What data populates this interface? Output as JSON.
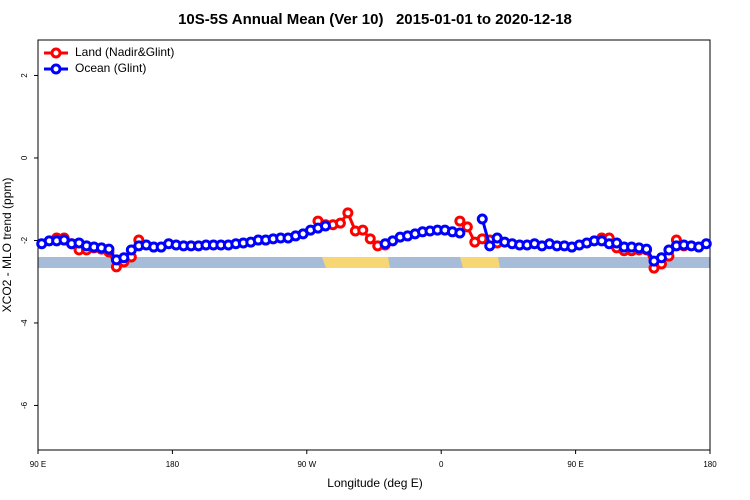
{
  "chart_data": {
    "type": "line",
    "title": "10S-5S Annual Mean (Ver 10)   2015-01-01 to 2020-12-18",
    "x_label": "Longitude (deg E)",
    "y_label": "XCO2 - MLO trend (ppm)",
    "xlim": [
      90,
      540
    ],
    "ylim": [
      -7.08,
      2.86
    ],
    "xticks": [
      {
        "value": 90,
        "label": "90 E"
      },
      180,
      {
        "value": 270,
        "label": "90 W"
      },
      {
        "value": 360,
        "label": "0"
      },
      {
        "value": 450,
        "label": "90 E"
      },
      {
        "value": 540,
        "label": "180"
      }
    ],
    "yticks": [
      -6,
      -4,
      -2,
      0,
      2
    ],
    "legend": "top-left",
    "x": [
      92.5,
      97.5,
      102.5,
      107.5,
      112.5,
      117.5,
      122.5,
      127.5,
      132.5,
      137.5,
      142.5,
      147.5,
      152.5,
      157.5,
      162.5,
      167.5,
      172.5,
      177.5,
      182.5,
      187.5,
      192.5,
      197.5,
      202.5,
      207.5,
      212.5,
      217.5,
      222.5,
      227.5,
      232.5,
      237.5,
      242.5,
      247.5,
      252.5,
      257.5,
      262.5,
      267.5,
      272.5,
      277.5,
      282.5,
      287.5,
      292.5,
      297.5,
      302.5,
      307.5,
      312.5,
      317.5,
      322.5,
      327.5,
      332.5,
      337.5,
      342.5,
      347.5,
      352.5,
      357.5,
      362.5,
      367.5,
      372.5,
      377.5,
      382.5,
      387.5,
      392.5,
      397.5,
      402.5,
      407.5,
      412.5,
      417.5,
      422.5,
      427.5,
      432.5,
      437.5,
      442.5,
      447.5,
      452.5,
      457.5,
      462.5,
      467.5,
      472.5,
      477.5,
      482.5,
      487.5,
      492.5,
      497.5,
      502.5,
      507.5,
      512.5,
      517.5,
      522.5,
      527.5,
      532.5,
      537.5
    ],
    "series": [
      {
        "name": "Land (Nadir&Glint)",
        "color": "#ff0000",
        "values": [
          null,
          null,
          -1.94,
          -1.94,
          -2.08,
          -2.23,
          -2.23,
          -2.18,
          -2.21,
          -2.28,
          -2.64,
          -2.52,
          -2.4,
          -1.99,
          null,
          null,
          null,
          null,
          null,
          null,
          null,
          null,
          null,
          null,
          null,
          null,
          null,
          null,
          null,
          null,
          null,
          null,
          null,
          null,
          null,
          null,
          null,
          -1.53,
          -1.62,
          -1.62,
          -1.58,
          -1.33,
          -1.77,
          -1.75,
          -1.96,
          -2.13,
          -2.11,
          null,
          null,
          null,
          null,
          null,
          null,
          null,
          null,
          null,
          -1.53,
          -1.67,
          -2.04,
          -1.96,
          -1.99,
          -2.06,
          null,
          null,
          null,
          null,
          null,
          null,
          null,
          null,
          null,
          null,
          null,
          null,
          null,
          -1.94,
          -1.94,
          -2.18,
          -2.25,
          -2.25,
          -2.23,
          -2.23,
          -2.67,
          -2.57,
          -2.38,
          -1.99,
          -2.13,
          null,
          null,
          null
        ]
      },
      {
        "name": "Ocean (Glint)",
        "color": "#0000ff",
        "values": [
          -2.08,
          -2.01,
          -2.01,
          -1.99,
          -2.08,
          -2.06,
          -2.13,
          -2.16,
          -2.18,
          -2.21,
          -2.47,
          -2.42,
          -2.23,
          -2.13,
          -2.11,
          -2.16,
          -2.16,
          -2.08,
          -2.11,
          -2.13,
          -2.13,
          -2.13,
          -2.11,
          -2.11,
          -2.11,
          -2.11,
          -2.08,
          -2.06,
          -2.04,
          -1.99,
          -1.99,
          -1.96,
          -1.94,
          -1.94,
          -1.89,
          -1.84,
          -1.75,
          -1.7,
          -1.65,
          null,
          null,
          null,
          null,
          null,
          null,
          null,
          -2.08,
          -2.01,
          -1.92,
          -1.89,
          -1.84,
          -1.79,
          -1.77,
          -1.75,
          -1.75,
          -1.79,
          -1.82,
          null,
          null,
          -1.48,
          -2.13,
          -1.94,
          -2.04,
          -2.08,
          -2.11,
          -2.11,
          -2.08,
          -2.13,
          -2.08,
          -2.13,
          -2.13,
          -2.16,
          -2.11,
          -2.06,
          -2.01,
          -2.01,
          -2.08,
          -2.06,
          -2.16,
          -2.16,
          -2.18,
          -2.21,
          -2.5,
          -2.42,
          -2.23,
          -2.13,
          -2.11,
          -2.13,
          -2.16,
          -2.08
        ]
      }
    ]
  }
}
